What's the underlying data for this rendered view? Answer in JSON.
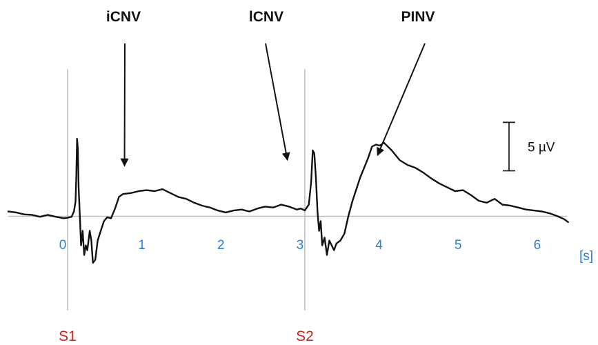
{
  "chart_data": {
    "type": "line",
    "x_unit": "[s]",
    "x_ticks": [
      "0",
      "1",
      "2",
      "3",
      "4",
      "5",
      "6"
    ],
    "xlim": [
      -0.75,
      6.35
    ],
    "ylim": [
      -8.8,
      13
    ],
    "grid": false,
    "stimuli": [
      {
        "label": "S1",
        "x": 0
      },
      {
        "label": "S2",
        "x": 3
      }
    ],
    "annotations": [
      {
        "label": "iCNV",
        "x": 0.72,
        "y": 5.2
      },
      {
        "label": "lCNV",
        "x": 2.78,
        "y": 5.8
      },
      {
        "label": "PINV",
        "x": 3.92,
        "y": 6.3
      }
    ],
    "scale_bar": {
      "label": "5 µV",
      "value": 5
    },
    "series": [
      {
        "points": [
          [
            -0.75,
            0.5
          ],
          [
            -0.65,
            0.4
          ],
          [
            -0.55,
            0.2
          ],
          [
            -0.45,
            0.15
          ],
          [
            -0.35,
            -0.05
          ],
          [
            -0.25,
            0.15
          ],
          [
            -0.15,
            -0.05
          ],
          [
            -0.05,
            -0.2
          ],
          [
            0.0,
            -0.15
          ],
          [
            0.05,
            -0.05
          ],
          [
            0.08,
            0.5
          ],
          [
            0.1,
            1.5
          ],
          [
            0.11,
            4.0
          ],
          [
            0.12,
            8.0
          ],
          [
            0.13,
            7.0
          ],
          [
            0.14,
            3.0
          ],
          [
            0.15,
            1.0
          ],
          [
            0.17,
            -3.0
          ],
          [
            0.19,
            -1.5
          ],
          [
            0.21,
            -4.0
          ],
          [
            0.23,
            -3.0
          ],
          [
            0.25,
            -3.5
          ],
          [
            0.28,
            -1.5
          ],
          [
            0.3,
            -2.5
          ],
          [
            0.32,
            -4.8
          ],
          [
            0.35,
            -4.5
          ],
          [
            0.38,
            -2.5
          ],
          [
            0.42,
            -1.5
          ],
          [
            0.46,
            -0.5
          ],
          [
            0.5,
            -0.1
          ],
          [
            0.55,
            -0.2
          ],
          [
            0.6,
            0.8
          ],
          [
            0.65,
            2.0
          ],
          [
            0.7,
            2.3
          ],
          [
            0.8,
            2.4
          ],
          [
            0.9,
            2.6
          ],
          [
            1.0,
            2.7
          ],
          [
            1.1,
            2.6
          ],
          [
            1.2,
            2.8
          ],
          [
            1.3,
            2.4
          ],
          [
            1.4,
            2.0
          ],
          [
            1.5,
            1.8
          ],
          [
            1.6,
            1.4
          ],
          [
            1.7,
            1.1
          ],
          [
            1.8,
            0.9
          ],
          [
            1.9,
            0.6
          ],
          [
            2.0,
            0.4
          ],
          [
            2.1,
            0.6
          ],
          [
            2.2,
            0.7
          ],
          [
            2.3,
            0.5
          ],
          [
            2.4,
            0.8
          ],
          [
            2.5,
            1.0
          ],
          [
            2.6,
            0.9
          ],
          [
            2.7,
            1.2
          ],
          [
            2.8,
            1.0
          ],
          [
            2.9,
            0.7
          ],
          [
            2.95,
            0.8
          ],
          [
            3.0,
            0.6
          ],
          [
            3.05,
            1.2
          ],
          [
            3.08,
            3.5
          ],
          [
            3.1,
            6.8
          ],
          [
            3.12,
            6.5
          ],
          [
            3.14,
            4.0
          ],
          [
            3.16,
            0.5
          ],
          [
            3.18,
            -1.5
          ],
          [
            3.2,
            -0.5
          ],
          [
            3.22,
            -3.0
          ],
          [
            3.25,
            -2.2
          ],
          [
            3.28,
            -4.0
          ],
          [
            3.31,
            -2.5
          ],
          [
            3.34,
            -3.0
          ],
          [
            3.37,
            -3.5
          ],
          [
            3.4,
            -2.8
          ],
          [
            3.45,
            -2.5
          ],
          [
            3.5,
            -1.8
          ],
          [
            3.55,
            0.0
          ],
          [
            3.6,
            1.5
          ],
          [
            3.7,
            4.0
          ],
          [
            3.8,
            6.0
          ],
          [
            3.85,
            7.2
          ],
          [
            3.9,
            7.4
          ],
          [
            3.95,
            7.3
          ],
          [
            4.0,
            7.6
          ],
          [
            4.1,
            6.8
          ],
          [
            4.2,
            5.8
          ],
          [
            4.3,
            5.3
          ],
          [
            4.4,
            5.0
          ],
          [
            4.5,
            4.5
          ],
          [
            4.6,
            3.9
          ],
          [
            4.7,
            3.4
          ],
          [
            4.8,
            3.0
          ],
          [
            4.9,
            2.6
          ],
          [
            5.0,
            2.7
          ],
          [
            5.1,
            2.2
          ],
          [
            5.2,
            1.6
          ],
          [
            5.3,
            1.4
          ],
          [
            5.4,
            1.8
          ],
          [
            5.5,
            1.2
          ],
          [
            5.6,
            1.1
          ],
          [
            5.7,
            0.9
          ],
          [
            5.8,
            0.7
          ],
          [
            5.9,
            0.6
          ],
          [
            6.0,
            0.5
          ],
          [
            6.1,
            0.3
          ],
          [
            6.2,
            0.0
          ],
          [
            6.28,
            -0.3
          ],
          [
            6.33,
            -0.6
          ]
        ]
      }
    ]
  }
}
